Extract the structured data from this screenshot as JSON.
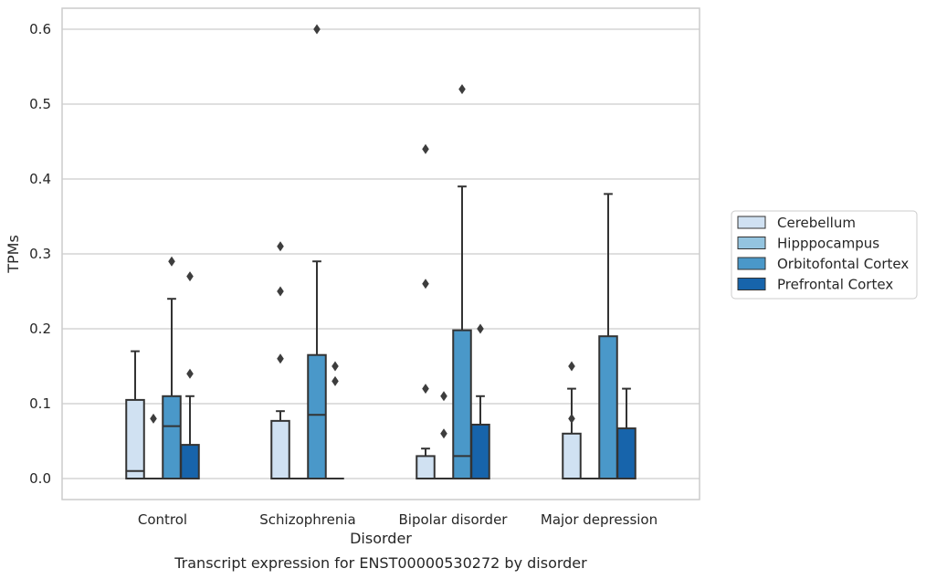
{
  "chart_data": {
    "type": "box",
    "caption": "Transcript expression for ENST00000530272 by disorder",
    "xlabel": "Disorder",
    "ylabel": "TPMs",
    "ylim": [
      -0.03,
      0.63
    ],
    "yticks": [
      0.0,
      0.1,
      0.2,
      0.3,
      0.4,
      0.5,
      0.6
    ],
    "ytick_labels": [
      "0.0",
      "0.1",
      "0.2",
      "0.3",
      "0.4",
      "0.5",
      "0.6"
    ],
    "grid": true,
    "legend_position": "right",
    "categories": [
      "Control",
      "Schizophrenia",
      "Bipolar disorder",
      "Major depression"
    ],
    "series": [
      {
        "name": "Cerebellum",
        "color": "#d0e1f2",
        "boxes": [
          {
            "q1": 0.0,
            "median": 0.01,
            "q3": 0.105,
            "whisker_low": 0.0,
            "whisker_high": 0.17,
            "outliers": []
          },
          {
            "q1": 0.0,
            "median": 0.0,
            "q3": 0.077,
            "whisker_low": 0.0,
            "whisker_high": 0.09,
            "outliers": [
              0.16,
              0.25,
              0.31
            ]
          },
          {
            "q1": 0.0,
            "median": 0.0,
            "q3": 0.03,
            "whisker_low": 0.0,
            "whisker_high": 0.04,
            "outliers": [
              0.12,
              0.26,
              0.44
            ]
          },
          {
            "q1": 0.0,
            "median": 0.0,
            "q3": 0.06,
            "whisker_low": 0.0,
            "whisker_high": 0.12,
            "outliers": [
              0.08,
              0.15
            ]
          }
        ]
      },
      {
        "name": "Hipppocampus",
        "color": "#94c4df",
        "boxes": [
          {
            "q1": 0.0,
            "median": 0.0,
            "q3": 0.0,
            "whisker_low": 0.0,
            "whisker_high": 0.0,
            "outliers": [
              0.08
            ]
          },
          {
            "q1": 0.0,
            "median": 0.0,
            "q3": 0.0,
            "whisker_low": 0.0,
            "whisker_high": 0.0,
            "outliers": []
          },
          {
            "q1": 0.0,
            "median": 0.0,
            "q3": 0.0,
            "whisker_low": 0.0,
            "whisker_high": 0.0,
            "outliers": [
              0.06,
              0.11
            ]
          },
          {
            "q1": 0.0,
            "median": 0.0,
            "q3": 0.0,
            "whisker_low": 0.0,
            "whisker_high": 0.0,
            "outliers": []
          }
        ]
      },
      {
        "name": "Orbitofontal Cortex",
        "color": "#4a98c9",
        "boxes": [
          {
            "q1": 0.0,
            "median": 0.07,
            "q3": 0.11,
            "whisker_low": 0.0,
            "whisker_high": 0.24,
            "outliers": [
              0.29
            ]
          },
          {
            "q1": 0.0,
            "median": 0.085,
            "q3": 0.165,
            "whisker_low": 0.0,
            "whisker_high": 0.29,
            "outliers": [
              0.6
            ]
          },
          {
            "q1": 0.0,
            "median": 0.03,
            "q3": 0.198,
            "whisker_low": 0.0,
            "whisker_high": 0.39,
            "outliers": [
              0.52
            ]
          },
          {
            "q1": 0.0,
            "median": 0.0,
            "q3": 0.19,
            "whisker_low": 0.0,
            "whisker_high": 0.38,
            "outliers": []
          }
        ]
      },
      {
        "name": "Prefrontal Cortex",
        "color": "#1764ab",
        "boxes": [
          {
            "q1": 0.0,
            "median": 0.0,
            "q3": 0.045,
            "whisker_low": 0.0,
            "whisker_high": 0.11,
            "outliers": [
              0.14,
              0.27
            ]
          },
          {
            "q1": 0.0,
            "median": 0.0,
            "q3": 0.0,
            "whisker_low": 0.0,
            "whisker_high": 0.0,
            "outliers": [
              0.13,
              0.15
            ]
          },
          {
            "q1": 0.0,
            "median": 0.0,
            "q3": 0.072,
            "whisker_low": 0.0,
            "whisker_high": 0.11,
            "outliers": [
              0.2
            ]
          },
          {
            "q1": 0.0,
            "median": 0.0,
            "q3": 0.067,
            "whisker_low": 0.0,
            "whisker_high": 0.12,
            "outliers": []
          }
        ]
      }
    ]
  }
}
